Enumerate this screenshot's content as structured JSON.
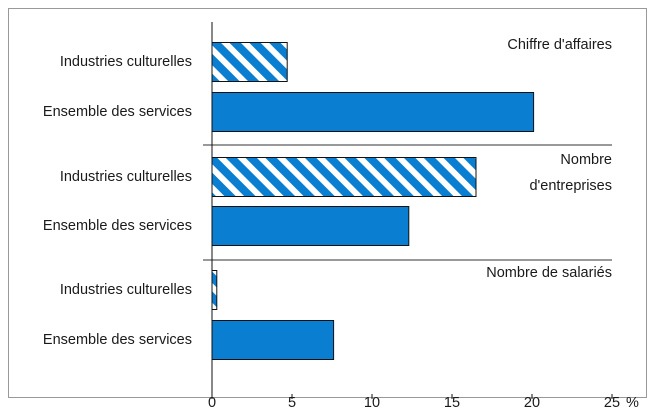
{
  "chart_data": {
    "type": "bar",
    "orientation": "horizontal",
    "color": "#0a7fd1",
    "hatch": [
      true,
      false
    ],
    "groups": [
      {
        "title": [
          "Chiffre d'affaires"
        ],
        "categories": [
          "Industries culturelles",
          "Ensemble des services"
        ],
        "values": [
          4.7,
          20.1
        ]
      },
      {
        "title": [
          "Nombre",
          "d'entreprises"
        ],
        "categories": [
          "Industries culturelles",
          "Ensemble des services"
        ],
        "values": [
          16.5,
          12.3
        ]
      },
      {
        "title": [
          "Nombre de salariés"
        ],
        "categories": [
          "Industries culturelles",
          "Ensemble des services"
        ],
        "values": [
          0.3,
          7.6
        ]
      }
    ],
    "xlim": [
      0,
      25
    ],
    "xticks": [
      0,
      5,
      10,
      15,
      20,
      25
    ],
    "x_unit": "%"
  }
}
